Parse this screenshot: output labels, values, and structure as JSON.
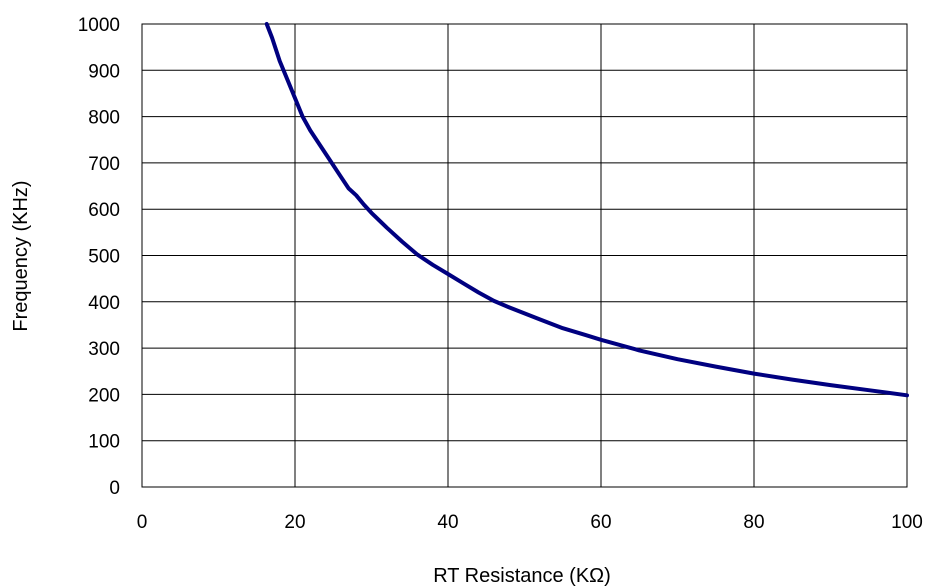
{
  "chart_data": {
    "type": "line",
    "xlabel": "RT Resistance (KΩ)",
    "ylabel": "Frequency (KHz)",
    "xlim": [
      0,
      100
    ],
    "ylim": [
      0,
      1000
    ],
    "x_ticks": [
      "0",
      "20",
      "40",
      "60",
      "80",
      "100"
    ],
    "y_ticks": [
      "0",
      "100",
      "200",
      "300",
      "400",
      "500",
      "600",
      "700",
      "800",
      "900",
      "1000"
    ],
    "grid": true,
    "legend": "none",
    "series": [
      {
        "color": "#000080",
        "x": [
          16.3,
          17,
          18,
          19,
          20,
          21,
          22,
          24,
          26,
          27,
          28,
          29,
          30,
          32,
          34,
          36,
          38,
          40,
          42,
          44,
          46,
          48,
          50,
          52,
          55,
          58,
          60,
          65,
          70,
          75,
          80,
          85,
          90,
          95,
          100
        ],
        "y": [
          1000,
          970,
          920,
          880,
          840,
          800,
          770,
          720,
          670,
          645,
          630,
          610,
          592,
          560,
          530,
          502,
          480,
          460,
          440,
          420,
          402,
          388,
          375,
          362,
          343,
          328,
          318,
          295,
          276,
          260,
          245,
          232,
          220,
          209,
          198
        ]
      }
    ]
  }
}
